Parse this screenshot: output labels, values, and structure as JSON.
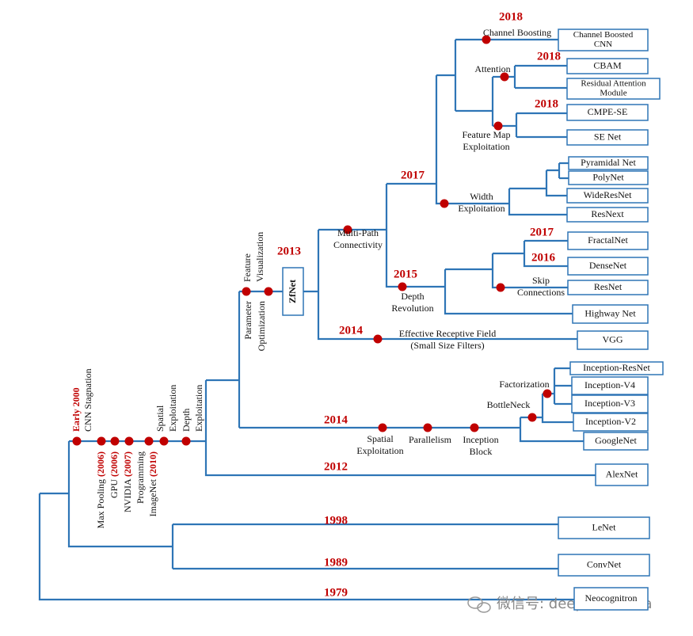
{
  "boxes": [
    [
      "Channel Boosted",
      "CNN"
    ],
    [
      "CBAM"
    ],
    [
      "Residual Attention",
      "Module"
    ],
    [
      "CMPE-SE"
    ],
    [
      "SE Net"
    ],
    [
      "Pyramidal Net"
    ],
    [
      "PolyNet"
    ],
    [
      "WideResNet"
    ],
    [
      "ResNext"
    ],
    [
      "FractalNet"
    ],
    [
      "DenseNet"
    ],
    [
      "ResNet"
    ],
    [
      "Highway Net"
    ],
    [
      "VGG"
    ],
    [
      "Inception-ResNet"
    ],
    [
      "Inception-V4"
    ],
    [
      "Inception-V3"
    ],
    [
      "Inception-V2"
    ],
    [
      "GoogleNet"
    ],
    [
      "AlexNet"
    ],
    [
      "LeNet"
    ],
    [
      "ConvNet"
    ],
    [
      "Neocognitron"
    ]
  ],
  "years": [
    "2018",
    "2018",
    "2018",
    "2017",
    "2013",
    "2015",
    "2017",
    "2016",
    "2014",
    "2014",
    "2012",
    "1998",
    "1989",
    "1979"
  ],
  "labels": [
    [
      "Channel Boosting"
    ],
    [
      "Attention"
    ],
    [
      "Feature Map",
      "Exploitation"
    ],
    [
      "Width",
      "Exploitation"
    ],
    [
      "Multi-Path",
      "Connectivity"
    ],
    [
      "Depth",
      "Revolution"
    ],
    [
      "Skip",
      "Connections"
    ],
    [
      "Effective Receptive Field",
      "(Small Size Filters)"
    ],
    [
      "Spatial",
      "Exploitation"
    ],
    [
      "Parallelism"
    ],
    [
      "Inception",
      "Block"
    ],
    [
      "Factorization"
    ],
    [
      "BottleNeck"
    ]
  ],
  "rotated_labels": [
    {
      "year": "Early 2000"
    },
    {
      "text": "CNN Stagnation"
    },
    {
      "text": "Max Pooling ",
      "year": "(2006)"
    },
    {
      "text": "GPU ",
      "year": "(2006)"
    },
    {
      "text": "NVIDIA ",
      "year": "(2007)"
    },
    {
      "text": "Programming"
    },
    {
      "text": "ImageNet ",
      "year": "(2010)"
    },
    {
      "text": "Spatial"
    },
    {
      "text": "Exploitation"
    },
    {
      "text": "Depth"
    },
    {
      "text": "Exploitation"
    },
    {
      "text": "Feature"
    },
    {
      "text": "Visualization"
    },
    {
      "text": "Parameter"
    },
    {
      "text": "Optimization"
    }
  ],
  "zfnet": "ZfNet",
  "watermark": "微信号: deephub-imba"
}
